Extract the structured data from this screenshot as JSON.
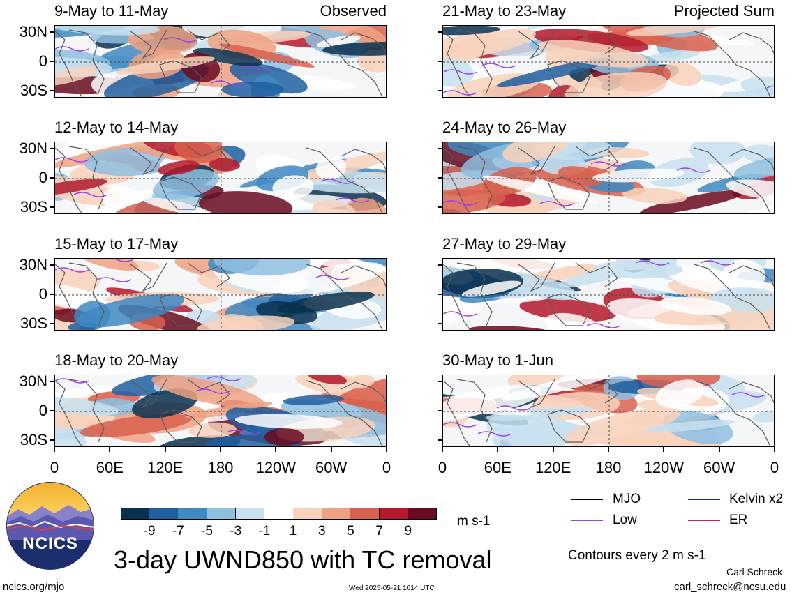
{
  "panels_left": [
    {
      "title": "9-May to 11-May",
      "tag": "Observed"
    },
    {
      "title": "12-May to 14-May",
      "tag": ""
    },
    {
      "title": "15-May to 17-May",
      "tag": ""
    },
    {
      "title": "18-May to 20-May",
      "tag": ""
    }
  ],
  "panels_right": [
    {
      "title": "21-May to 23-May",
      "tag": "Projected Sum"
    },
    {
      "title": "24-May to 26-May",
      "tag": ""
    },
    {
      "title": "27-May to 29-May",
      "tag": ""
    },
    {
      "title": "30-May to 1-Jun",
      "tag": ""
    }
  ],
  "lat_labels": [
    "30N",
    "0",
    "30S"
  ],
  "lon_labels": [
    "0",
    "60E",
    "120E",
    "180",
    "120W",
    "60W",
    "0"
  ],
  "colorbar": {
    "labels": [
      "-9",
      "-7",
      "-5",
      "-3",
      "-1",
      "1",
      "3",
      "5",
      "7",
      "9"
    ],
    "colors": [
      "#08304f",
      "#1f5fa0",
      "#3f88c2",
      "#8fc0e0",
      "#c8e0f0",
      "#ffffff",
      "#f8d2bc",
      "#efa183",
      "#d8604e",
      "#b4182a",
      "#6a0a20"
    ],
    "units": "m s-1"
  },
  "legend": [
    {
      "label": "MJO",
      "color": "#000000"
    },
    {
      "label": "Kelvin x2",
      "color": "#1a1aee"
    },
    {
      "label": "Low",
      "color": "#9a3cf0"
    },
    {
      "label": "ER",
      "color": "#e02020"
    }
  ],
  "main_title": "3-day UWND850 with TC removal",
  "contour_note": "Contours every 2 m s-1",
  "logo_text": "NCICS",
  "url": "ncics.org/mjo",
  "timestamp": "Wed 2025-05-21 1014 UTC",
  "author": "Carl Schreck",
  "email": "carl_schreck@ncsu.edu"
}
